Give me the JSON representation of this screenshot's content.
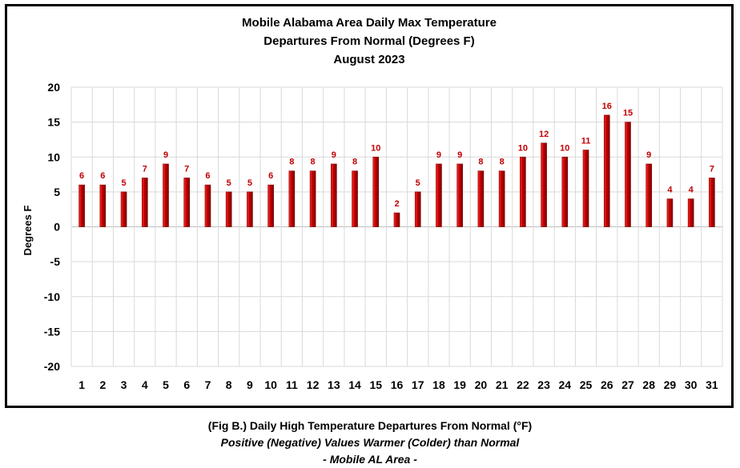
{
  "chart_data": {
    "type": "bar",
    "title": [
      "Mobile Alabama Area Daily Max Temperature",
      "Departures From Normal (Degrees F)",
      "August 2023"
    ],
    "xlabel": "",
    "ylabel": "Degrees F",
    "ylim": [
      -20,
      20
    ],
    "yticks": [
      20,
      15,
      10,
      5,
      0,
      -5,
      -10,
      -15,
      -20
    ],
    "grid": true,
    "legend": "none",
    "categories": [
      "1",
      "2",
      "3",
      "4",
      "5",
      "6",
      "7",
      "8",
      "9",
      "10",
      "11",
      "12",
      "13",
      "14",
      "15",
      "16",
      "17",
      "18",
      "19",
      "20",
      "21",
      "22",
      "23",
      "24",
      "25",
      "26",
      "27",
      "28",
      "29",
      "30",
      "31"
    ],
    "values": [
      6,
      6,
      5,
      7,
      9,
      7,
      6,
      5,
      5,
      6,
      8,
      8,
      9,
      8,
      10,
      2,
      5,
      9,
      9,
      8,
      8,
      10,
      12,
      10,
      11,
      16,
      15,
      9,
      4,
      4,
      7
    ],
    "data_labels": [
      "6",
      "6",
      "5",
      "7",
      "9",
      "7",
      "6",
      "5",
      "5",
      "6",
      "8",
      "8",
      "9",
      "8",
      "10",
      "2",
      "5",
      "9",
      "9",
      "8",
      "8",
      "10",
      "12",
      "10",
      "11",
      "16",
      "15",
      "9",
      "4",
      "4",
      "7"
    ],
    "colors": {
      "bar_light": "#ff2a2a",
      "bar_dark": "#7a0000",
      "bar_mid": "#c00000",
      "label": "#c00000",
      "grid": "#d9d9d9"
    }
  },
  "caption": {
    "line1": "(Fig B.) Daily High Temperature Departures From Normal (°F)",
    "line2": "Positive (Negative) Values Warmer (Colder) than Normal",
    "line3": "- Mobile AL Area -"
  }
}
